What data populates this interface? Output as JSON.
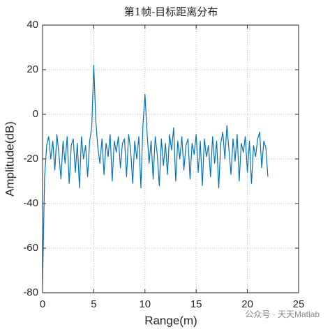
{
  "chart_data": {
    "type": "line",
    "title": "第1帧-目标距离分布",
    "xlabel": "Range(m)",
    "ylabel": "Amplitude(dB)",
    "x": [
      0,
      0.2,
      0.4,
      0.6,
      0.8,
      1,
      1.2,
      1.4,
      1.6,
      1.8,
      2,
      2.2,
      2.4,
      2.6,
      2.8,
      3,
      3.2,
      3.4,
      3.6,
      3.8,
      4,
      4.2,
      4.4,
      4.6,
      4.8,
      5,
      5.2,
      5.4,
      5.6,
      5.8,
      6,
      6.2,
      6.4,
      6.6,
      6.8,
      7,
      7.2,
      7.4,
      7.6,
      7.8,
      8,
      8.2,
      8.4,
      8.6,
      8.8,
      9,
      9.2,
      9.4,
      9.6,
      9.8,
      10,
      10.2,
      10.4,
      10.6,
      10.8,
      11,
      11.2,
      11.4,
      11.6,
      11.8,
      12,
      12.2,
      12.4,
      12.6,
      12.8,
      13,
      13.2,
      13.4,
      13.6,
      13.8,
      14,
      14.2,
      14.4,
      14.6,
      14.8,
      15,
      15.2,
      15.4,
      15.6,
      15.8,
      16,
      16.2,
      16.4,
      16.6,
      16.8,
      17,
      17.2,
      17.4,
      17.6,
      17.8,
      18,
      18.2,
      18.4,
      18.6,
      18.8,
      19,
      19.2,
      19.4,
      19.6,
      19.8,
      20,
      20.2,
      20.4,
      20.6,
      20.8,
      21,
      21.2,
      21.4,
      21.6,
      21.8,
      22
    ],
    "values": [
      -76,
      -28,
      -14,
      -10,
      -20,
      -12,
      -25,
      -9,
      -18,
      -29,
      -12,
      -22,
      -10,
      -31,
      -14,
      -11,
      -26,
      -13,
      -33,
      -10,
      -20,
      -14,
      -28,
      -12,
      -6,
      22,
      -3,
      -15,
      -22,
      -11,
      -27,
      -13,
      -19,
      -9,
      -30,
      -12,
      -17,
      -10,
      -24,
      -13,
      -11,
      -28,
      -9,
      -16,
      -31,
      -12,
      -20,
      -10,
      -33,
      -5,
      9,
      -8,
      -22,
      -12,
      -29,
      -10,
      -18,
      -32,
      -11,
      -23,
      -13,
      -27,
      -9,
      -16,
      -6,
      -30,
      -12,
      -20,
      -10,
      -25,
      -14,
      -11,
      -29,
      -13,
      -18,
      -9,
      -26,
      -12,
      -32,
      -11,
      -19,
      -14,
      -28,
      -10,
      -22,
      -12,
      -33,
      -13,
      -8,
      -20,
      -5,
      -16,
      -27,
      -11,
      -21,
      -9,
      -30,
      -13,
      -17,
      -10,
      -26,
      -12,
      -31,
      -14,
      -19,
      -11,
      -8,
      -24,
      -12,
      -15,
      -28
    ],
    "color": "#0072bd",
    "xlim": [
      0,
      25
    ],
    "xticks": [
      0,
      5,
      10,
      15,
      20,
      25
    ],
    "ylim": [
      -80,
      40
    ],
    "yticks": [
      -80,
      -60,
      -40,
      -20,
      0,
      20,
      40
    ],
    "grid": true,
    "watermark": "公众号 · 天天Matlab"
  }
}
